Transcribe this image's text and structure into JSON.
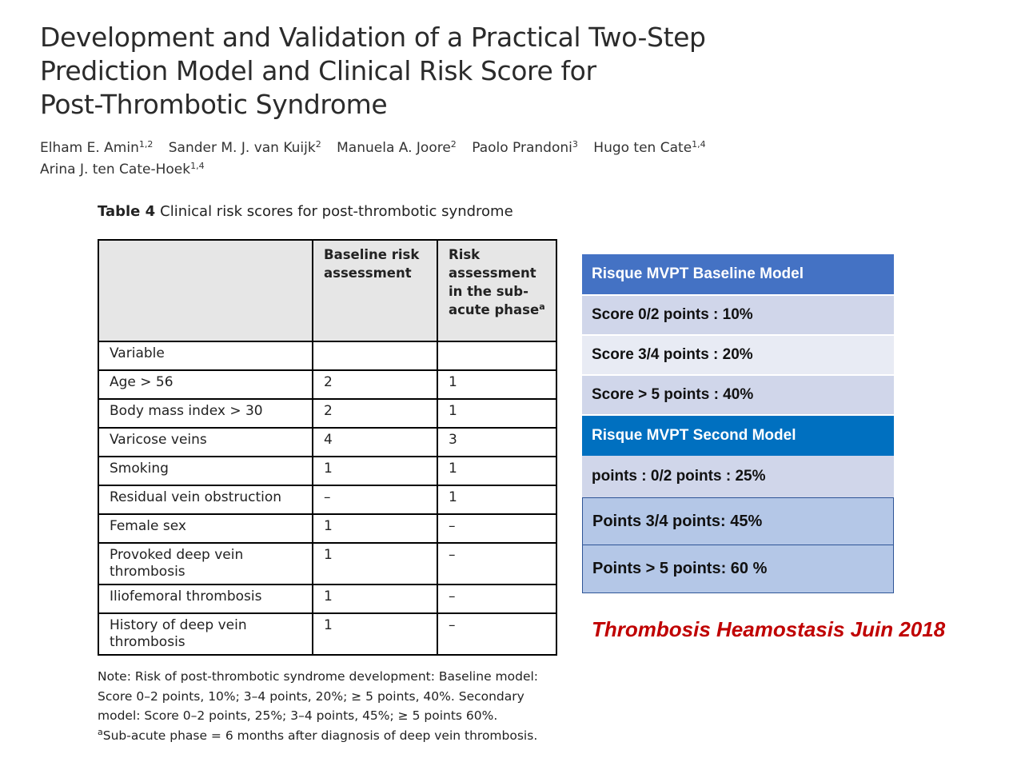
{
  "paper": {
    "title_lines": [
      "Development and Validation of a Practical Two-Step",
      "Prediction Model and Clinical Risk Score for",
      "Post-Thrombotic Syndrome"
    ],
    "authors_line1": [
      {
        "name": "Elham E. Amin",
        "aff": "1,2"
      },
      {
        "name": "Sander M. J. van Kuijk",
        "aff": "2"
      },
      {
        "name": "Manuela A. Joore",
        "aff": "2"
      },
      {
        "name": "Paolo Prandoni",
        "aff": "3"
      },
      {
        "name": "Hugo ten Cate",
        "aff": "1,4"
      }
    ],
    "authors_line2": [
      {
        "name": "Arina J. ten Cate-Hoek",
        "aff": "1,4"
      }
    ]
  },
  "table": {
    "label": "Table 4",
    "caption": "Clinical risk scores for post-thrombotic syndrome",
    "headers": [
      "",
      "Baseline risk assessment",
      "Risk assessment in the sub-acute phase"
    ],
    "header_sup": "a",
    "rows": [
      [
        "Variable",
        "",
        ""
      ],
      [
        "Age > 56",
        "2",
        "1"
      ],
      [
        "Body mass index > 30",
        "2",
        "1"
      ],
      [
        "Varicose veins",
        "4",
        "3"
      ],
      [
        "Smoking",
        "1",
        "1"
      ],
      [
        "Residual vein obstruction",
        "–",
        "1"
      ],
      [
        "Female sex",
        "1",
        "–"
      ],
      [
        "Provoked deep vein thrombosis",
        "1",
        "–"
      ],
      [
        "Iliofemoral thrombosis",
        "1",
        "–"
      ],
      [
        "History of deep vein thrombosis",
        "1",
        "–"
      ]
    ]
  },
  "note": {
    "lines": [
      "Note: Risk of post-thrombotic syndrome development: Baseline model:",
      "Score 0–2 points, 10%; 3–4 points, 20%; ≥ 5 points, 40%. Secondary",
      "model: Score 0–2 points, 25%; 3–4 points, 45%; ≥ 5 points 60%.",
      "Sub-acute phase = 6 months after diagnosis of deep vein thrombosis."
    ],
    "sup": "a"
  },
  "summary": {
    "baseline_header": "Risque MVPT  Baseline Model",
    "baseline_rows": [
      "Score 0/2 points : 10%",
      "Score 3/4 points : 20%",
      "Score  > 5 points : 40%"
    ],
    "second_header": "Risque MVPT Second Model",
    "second_rows": [
      "points : 0/2 points : 25%",
      "Points 3/4 points: 45%",
      "Points > 5 points: 60 %"
    ]
  },
  "reference": "Thrombosis Heamostasis Juin 2018",
  "colors": {
    "baseline_header": "#4472c4",
    "second_header": "#0070c0",
    "light_row": "#d0d6ea",
    "blue_row": "#b4c7e7",
    "reference": "#c00000"
  }
}
